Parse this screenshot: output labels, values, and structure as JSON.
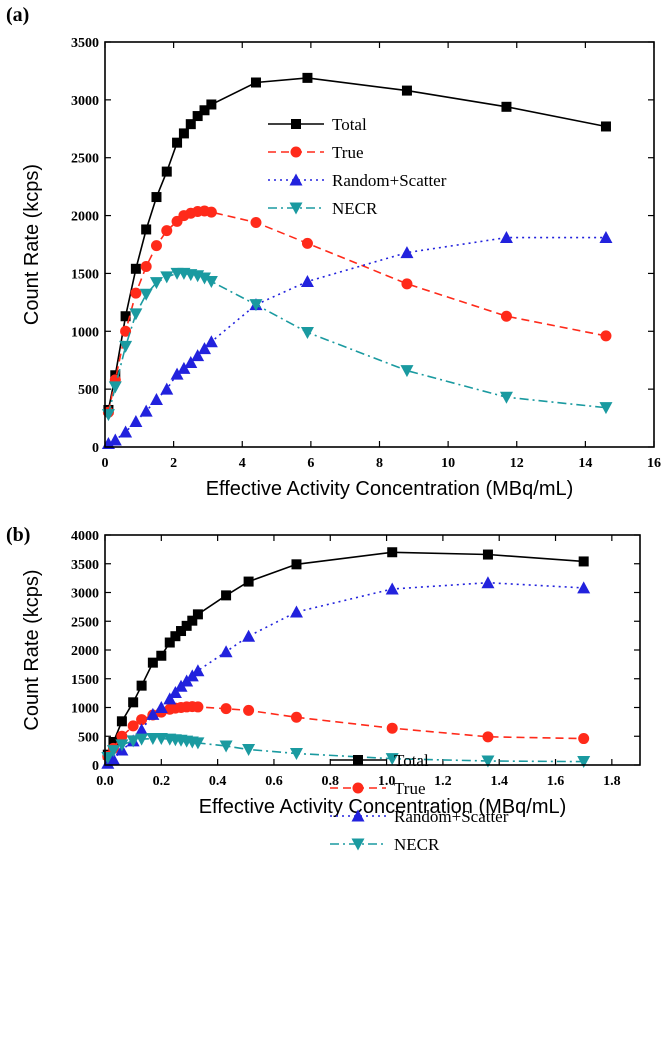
{
  "chart_data": [
    {
      "panel": "(a)",
      "type": "line",
      "xlabel": "Effective Activity Concentration (MBq/mL)",
      "ylabel": "Count Rate (kcps)",
      "xlim": [
        0,
        16
      ],
      "ylim": [
        0,
        3500
      ],
      "xticks": [
        "0",
        "2",
        "4",
        "6",
        "8",
        "10",
        "12",
        "14",
        "16"
      ],
      "yticks": [
        "0",
        "500",
        "1000",
        "1500",
        "2000",
        "2500",
        "3000",
        "3500"
      ],
      "legend_position": "upper-center",
      "series": [
        {
          "name": "Total",
          "color": "#000000",
          "marker": "square",
          "dash": "solid",
          "x": [
            0.1,
            0.3,
            0.6,
            0.9,
            1.2,
            1.5,
            1.8,
            2.1,
            2.3,
            2.5,
            2.7,
            2.9,
            3.1,
            4.4,
            5.9,
            8.8,
            11.7,
            14.6
          ],
          "y": [
            320,
            620,
            1130,
            1540,
            1880,
            2160,
            2380,
            2630,
            2710,
            2790,
            2860,
            2910,
            2960,
            3150,
            3190,
            3080,
            2940,
            2770
          ]
        },
        {
          "name": "True",
          "color": "#ff2a1a",
          "marker": "circle",
          "dash": "dashed",
          "x": [
            0.1,
            0.3,
            0.6,
            0.9,
            1.2,
            1.5,
            1.8,
            2.1,
            2.3,
            2.5,
            2.7,
            2.9,
            3.1,
            4.4,
            5.9,
            8.8,
            11.7,
            14.6
          ],
          "y": [
            300,
            580,
            1000,
            1330,
            1560,
            1740,
            1870,
            1950,
            2000,
            2020,
            2035,
            2040,
            2030,
            1940,
            1760,
            1410,
            1130,
            960
          ]
        },
        {
          "name": "Random+Scatter",
          "color": "#2222dd",
          "marker": "triangle-up",
          "dash": "dotted",
          "x": [
            0.1,
            0.3,
            0.6,
            0.9,
            1.2,
            1.5,
            1.8,
            2.1,
            2.3,
            2.5,
            2.7,
            2.9,
            3.1,
            4.4,
            5.9,
            8.8,
            11.7,
            14.6
          ],
          "y": [
            30,
            60,
            130,
            220,
            310,
            410,
            500,
            630,
            680,
            730,
            790,
            850,
            910,
            1230,
            1430,
            1680,
            1810,
            1810
          ]
        },
        {
          "name": "NECR",
          "color": "#1a9aa0",
          "marker": "triangle-down",
          "dash": "dashdot",
          "x": [
            0.1,
            0.3,
            0.6,
            0.9,
            1.2,
            1.5,
            1.8,
            2.1,
            2.3,
            2.5,
            2.7,
            2.9,
            3.1,
            4.4,
            5.9,
            8.8,
            11.7,
            14.6
          ],
          "y": [
            280,
            520,
            870,
            1150,
            1320,
            1420,
            1470,
            1500,
            1500,
            1490,
            1480,
            1460,
            1430,
            1230,
            990,
            660,
            430,
            340
          ]
        }
      ]
    },
    {
      "panel": "(b)",
      "type": "line",
      "xlabel": "Effective Activity Concentration (MBq/mL)",
      "ylabel": "Count Rate (kcps)",
      "xlim": [
        0,
        1.9
      ],
      "ylim": [
        0,
        4000
      ],
      "xticks": [
        "0.0",
        "0.2",
        "0.4",
        "0.6",
        "0.8",
        "1.0",
        "1.2",
        "1.4",
        "1.6",
        "1.8"
      ],
      "yticks": [
        "0",
        "500",
        "1000",
        "1500",
        "2000",
        "2500",
        "3000",
        "3500",
        "4000"
      ],
      "legend_position": "center-right",
      "series": [
        {
          "name": "Total",
          "color": "#000000",
          "marker": "square",
          "dash": "solid",
          "x": [
            0.01,
            0.03,
            0.06,
            0.1,
            0.13,
            0.17,
            0.2,
            0.23,
            0.25,
            0.27,
            0.29,
            0.31,
            0.33,
            0.43,
            0.51,
            0.68,
            1.02,
            1.36,
            1.7
          ],
          "y": [
            180,
            400,
            760,
            1090,
            1380,
            1780,
            1900,
            2130,
            2240,
            2330,
            2420,
            2510,
            2620,
            2950,
            3190,
            3490,
            3700,
            3660,
            3540
          ]
        },
        {
          "name": "True",
          "color": "#ff2a1a",
          "marker": "circle",
          "dash": "dashed",
          "x": [
            0.01,
            0.03,
            0.06,
            0.1,
            0.13,
            0.17,
            0.2,
            0.23,
            0.25,
            0.27,
            0.29,
            0.31,
            0.33,
            0.43,
            0.51,
            0.68,
            1.02,
            1.36,
            1.7
          ],
          "y": [
            150,
            290,
            500,
            680,
            790,
            870,
            920,
            970,
            990,
            1000,
            1010,
            1015,
            1010,
            980,
            950,
            830,
            640,
            490,
            460
          ]
        },
        {
          "name": "Random+Scatter",
          "color": "#2222dd",
          "marker": "triangle-up",
          "dash": "dotted",
          "x": [
            0.01,
            0.03,
            0.06,
            0.1,
            0.13,
            0.17,
            0.2,
            0.23,
            0.25,
            0.27,
            0.29,
            0.31,
            0.33,
            0.43,
            0.51,
            0.68,
            1.02,
            1.36,
            1.7
          ],
          "y": [
            30,
            100,
            260,
            420,
            610,
            880,
            1000,
            1150,
            1260,
            1370,
            1460,
            1550,
            1640,
            1970,
            2240,
            2660,
            3060,
            3170,
            3080
          ]
        },
        {
          "name": "NECR",
          "color": "#1a9aa0",
          "marker": "triangle-down",
          "dash": "dashdot",
          "x": [
            0.01,
            0.03,
            0.06,
            0.1,
            0.13,
            0.17,
            0.2,
            0.23,
            0.25,
            0.27,
            0.29,
            0.31,
            0.33,
            0.43,
            0.51,
            0.68,
            1.02,
            1.36,
            1.7
          ],
          "y": [
            130,
            250,
            350,
            420,
            450,
            460,
            460,
            450,
            440,
            430,
            415,
            400,
            385,
            330,
            270,
            200,
            110,
            70,
            60
          ]
        }
      ]
    }
  ]
}
